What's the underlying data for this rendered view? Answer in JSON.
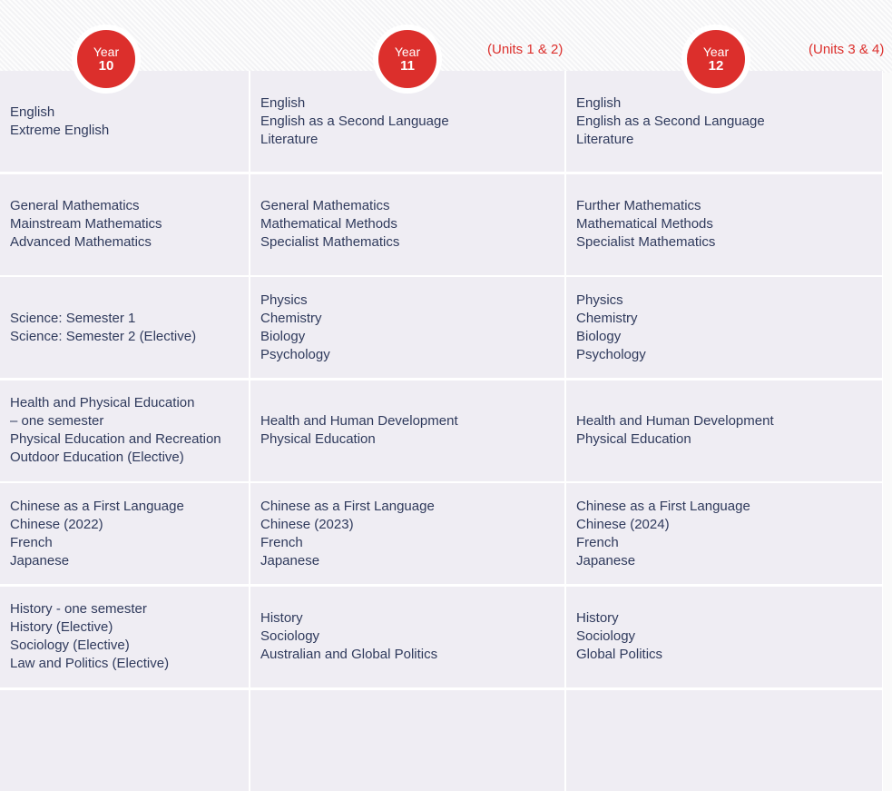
{
  "headers": [
    {
      "year_label": "Year",
      "year_number": "10",
      "units": ""
    },
    {
      "year_label": "Year",
      "year_number": "11",
      "units": "(Units 1 & 2)"
    },
    {
      "year_label": "Year",
      "year_number": "12",
      "units": "(Units 3 & 4)"
    }
  ],
  "rows": [
    [
      [
        "English",
        "Extreme English"
      ],
      [
        "English",
        "English as a Second Language",
        "Literature"
      ],
      [
        "English",
        "English as a Second Language",
        "Literature"
      ]
    ],
    [
      [
        "General Mathematics",
        "Mainstream Mathematics",
        "Advanced Mathematics"
      ],
      [
        "General Mathematics",
        "Mathematical Methods",
        "Specialist Mathematics"
      ],
      [
        "Further Mathematics",
        "Mathematical Methods",
        "Specialist Mathematics"
      ]
    ],
    [
      [
        "Science: Semester 1",
        "Science: Semester 2 (Elective)"
      ],
      [
        "Physics",
        "Chemistry",
        "Biology",
        "Psychology"
      ],
      [
        "Physics",
        "Chemistry",
        "Biology",
        "Psychology"
      ]
    ],
    [
      [
        "Health and Physical Education",
        "– one semester",
        "Physical Education and Recreation",
        "Outdoor Education (Elective)"
      ],
      [
        "Health and Human Development",
        "Physical Education"
      ],
      [
        "Health and Human Development",
        "Physical Education"
      ]
    ],
    [
      [
        "Chinese as a First Language",
        "Chinese (2022)",
        "French",
        "Japanese"
      ],
      [
        "Chinese as a First Language",
        "Chinese (2023)",
        "French",
        "Japanese"
      ],
      [
        "Chinese as a First Language",
        "Chinese (2024)",
        "French",
        "Japanese"
      ]
    ],
    [
      [
        "History - one semester",
        "History (Elective)",
        "Sociology (Elective)",
        "Law and Politics (Elective)"
      ],
      [
        "History",
        "Sociology",
        "Australian and Global Politics"
      ],
      [
        "History",
        "Sociology",
        "Global Politics"
      ]
    ],
    [
      [],
      [],
      []
    ]
  ],
  "colors": {
    "accent": "#dc2f2c",
    "text": "#2f3a5c",
    "cell": "#efedf3"
  }
}
